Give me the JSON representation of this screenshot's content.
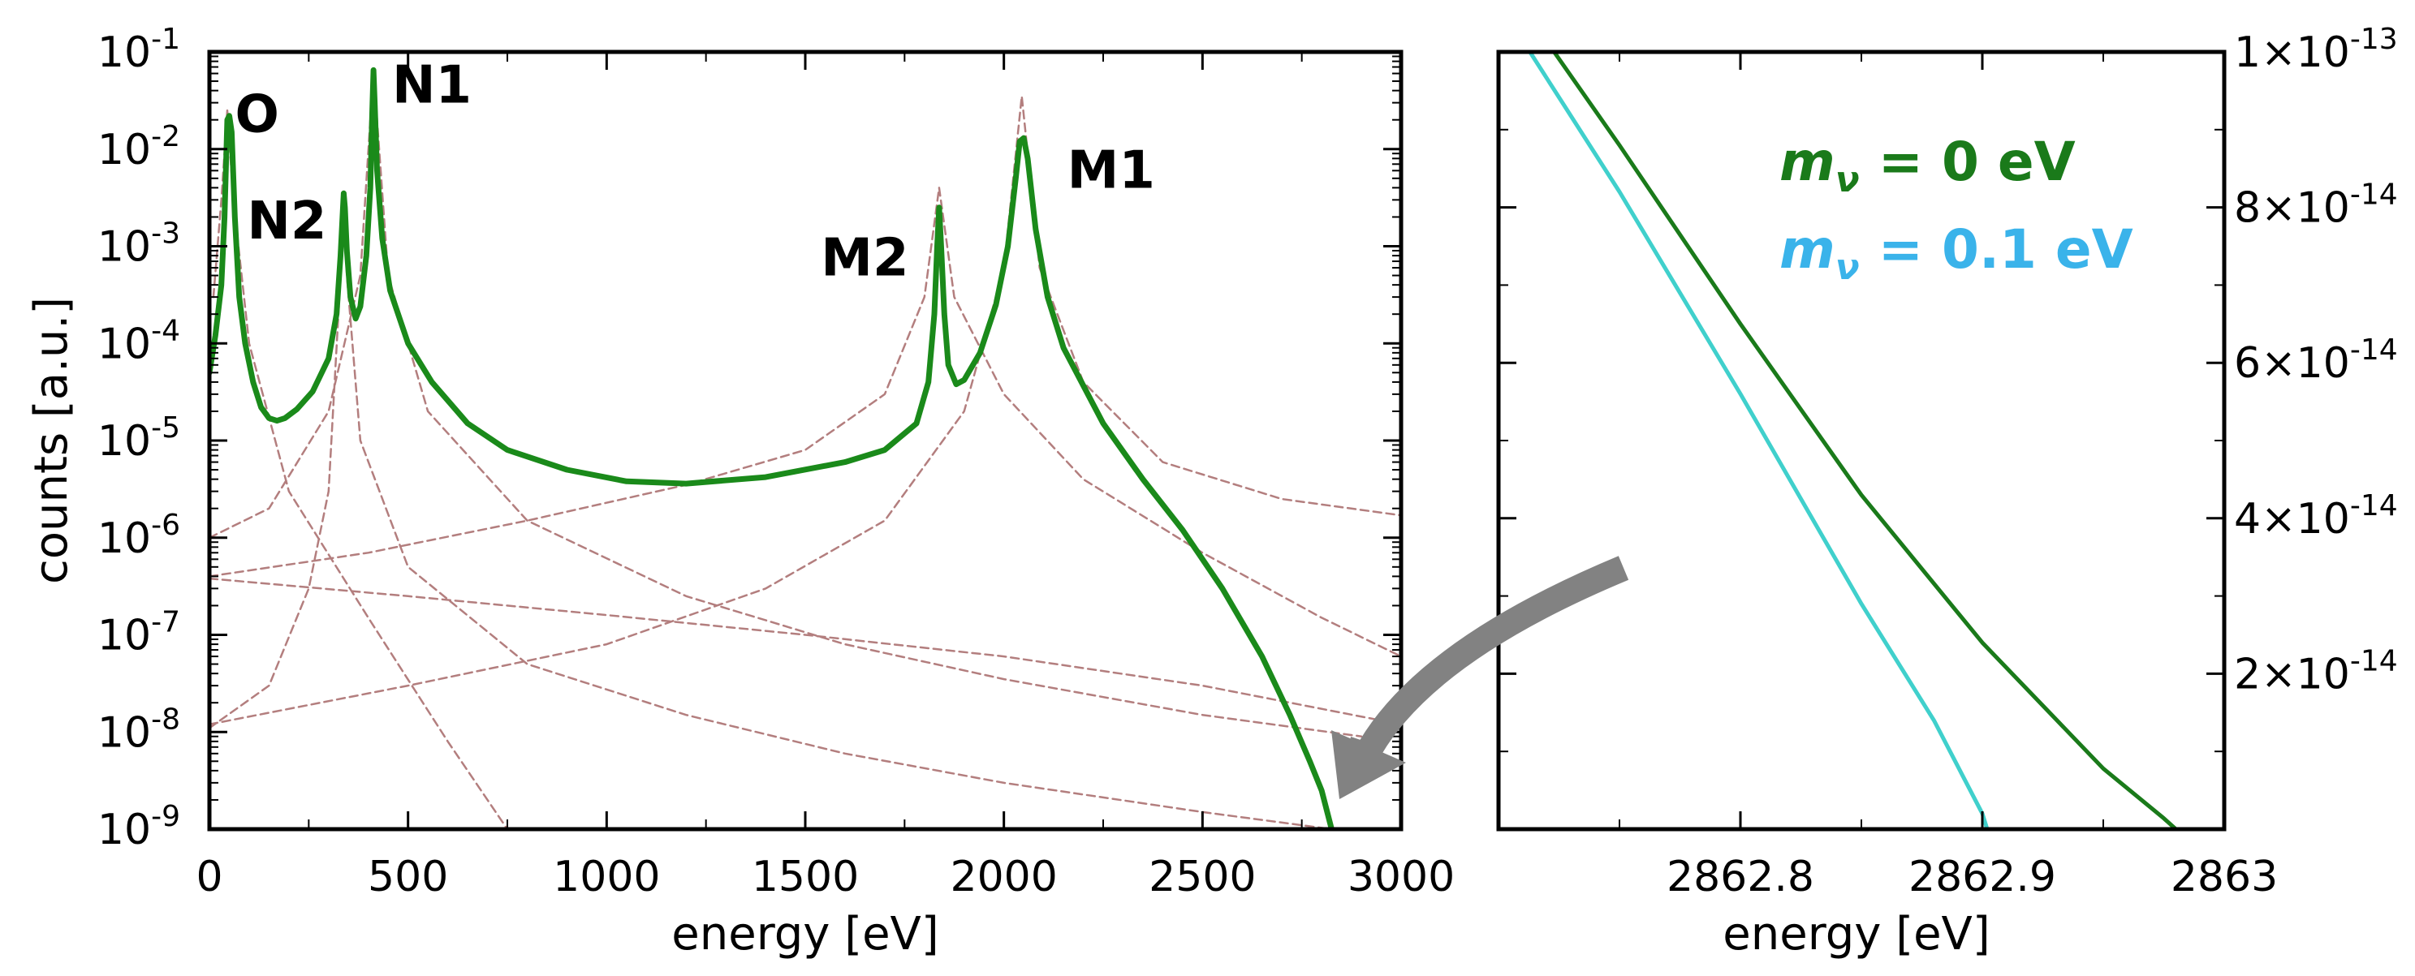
{
  "chart_data": [
    {
      "type": "line",
      "scale": {
        "x": "linear",
        "y": "log"
      },
      "xlim": [
        0,
        3000
      ],
      "ylim": [
        1e-09,
        0.1
      ],
      "xlabel": "energy [eV]",
      "ylabel": "counts [a.u.]",
      "x_ticks": [
        {
          "value": 0,
          "label": "0"
        },
        {
          "value": 500,
          "label": "500"
        },
        {
          "value": 1000,
          "label": "1000"
        },
        {
          "value": 1500,
          "label": "1500"
        },
        {
          "value": 2000,
          "label": "2000"
        },
        {
          "value": 2500,
          "label": "2500"
        },
        {
          "value": 3000,
          "label": "3000"
        }
      ],
      "y_ticks": [
        {
          "exp": -1,
          "mantissa": "10",
          "power": "-1"
        },
        {
          "exp": -2,
          "mantissa": "10",
          "power": "-2"
        },
        {
          "exp": -3,
          "mantissa": "10",
          "power": "-3"
        },
        {
          "exp": -4,
          "mantissa": "10",
          "power": "-4"
        },
        {
          "exp": -5,
          "mantissa": "10",
          "power": "-5"
        },
        {
          "exp": -6,
          "mantissa": "10",
          "power": "-6"
        },
        {
          "exp": -7,
          "mantissa": "10",
          "power": "-7"
        },
        {
          "exp": -8,
          "mantissa": "10",
          "power": "-8"
        },
        {
          "exp": -9,
          "mantissa": "10",
          "power": "-9"
        }
      ],
      "peak_labels": [
        {
          "text": "O",
          "x": 120,
          "y": 0.015
        },
        {
          "text": "N2",
          "x": 195,
          "y": 0.0012
        },
        {
          "text": "N1",
          "x": 560,
          "y": 0.03
        },
        {
          "text": "M2",
          "x": 1650,
          "y": 0.0005
        },
        {
          "text": "M1",
          "x": 2270,
          "y": 0.004
        }
      ],
      "series": [
        {
          "role": "total spectrum",
          "color": "#1a8a1a",
          "points": [
            [
              0,
              5e-05
            ],
            [
              15,
              0.00012
            ],
            [
              30,
              0.0004
            ],
            [
              38,
              0.002
            ],
            [
              45,
              0.02
            ],
            [
              50,
              0.022
            ],
            [
              56,
              0.015
            ],
            [
              64,
              0.002
            ],
            [
              75,
              0.0003
            ],
            [
              90,
              0.0001
            ],
            [
              110,
              4e-05
            ],
            [
              130,
              2.2e-05
            ],
            [
              150,
              1.7e-05
            ],
            [
              170,
              1.6e-05
            ],
            [
              190,
              1.7e-05
            ],
            [
              220,
              2.1e-05
            ],
            [
              260,
              3.2e-05
            ],
            [
              300,
              7e-05
            ],
            [
              320,
              0.0002
            ],
            [
              330,
              0.0008
            ],
            [
              335,
              0.002
            ],
            [
              338,
              0.0035
            ],
            [
              341,
              0.0025
            ],
            [
              346,
              0.0009
            ],
            [
              355,
              0.0003
            ],
            [
              368,
              0.00018
            ],
            [
              380,
              0.00024
            ],
            [
              395,
              0.0008
            ],
            [
              405,
              0.004
            ],
            [
              410,
              0.025
            ],
            [
              413,
              0.065
            ],
            [
              416,
              0.03
            ],
            [
              422,
              0.006
            ],
            [
              435,
              0.0012
            ],
            [
              455,
              0.00035
            ],
            [
              500,
              0.0001
            ],
            [
              560,
              4e-05
            ],
            [
              650,
              1.5e-05
            ],
            [
              750,
              8e-06
            ],
            [
              900,
              5e-06
            ],
            [
              1050,
              3.8e-06
            ],
            [
              1200,
              3.6e-06
            ],
            [
              1400,
              4.2e-06
            ],
            [
              1600,
              6e-06
            ],
            [
              1700,
              8e-06
            ],
            [
              1780,
              1.5e-05
            ],
            [
              1810,
              4e-05
            ],
            [
              1825,
              0.0002
            ],
            [
              1832,
              0.001
            ],
            [
              1837,
              0.0025
            ],
            [
              1842,
              0.001
            ],
            [
              1850,
              0.0002
            ],
            [
              1860,
              6e-05
            ],
            [
              1880,
              3.8e-05
            ],
            [
              1900,
              4.2e-05
            ],
            [
              1940,
              8e-05
            ],
            [
              1980,
              0.00025
            ],
            [
              2010,
              0.001
            ],
            [
              2030,
              0.005
            ],
            [
              2040,
              0.012
            ],
            [
              2050,
              0.013
            ],
            [
              2060,
              0.008
            ],
            [
              2080,
              0.0015
            ],
            [
              2110,
              0.0003
            ],
            [
              2150,
              9e-05
            ],
            [
              2250,
              1.5e-05
            ],
            [
              2350,
              4e-06
            ],
            [
              2450,
              1.2e-06
            ],
            [
              2550,
              3e-07
            ],
            [
              2650,
              6e-08
            ],
            [
              2720,
              1.5e-08
            ],
            [
              2770,
              5e-09
            ],
            [
              2800,
              2.5e-09
            ],
            [
              2825,
              1e-09
            ]
          ]
        },
        {
          "role": "component O",
          "color": "#b37e7e",
          "dashed": true,
          "points": [
            [
              10,
              0.0003
            ],
            [
              30,
              0.003
            ],
            [
              45,
              0.025
            ],
            [
              60,
              0.003
            ],
            [
              100,
              0.0001
            ],
            [
              200,
              3e-06
            ],
            [
              400,
              1.5e-07
            ],
            [
              600,
              8e-09
            ],
            [
              750,
              1e-09
            ]
          ]
        },
        {
          "role": "component N2",
          "color": "#b37e7e",
          "dashed": true,
          "points": [
            [
              0,
              1.1e-08
            ],
            [
              150,
              3e-08
            ],
            [
              250,
              3e-07
            ],
            [
              300,
              3e-06
            ],
            [
              330,
              0.0005
            ],
            [
              338,
              0.003
            ],
            [
              346,
              0.0005
            ],
            [
              380,
              1e-05
            ],
            [
              500,
              5e-07
            ],
            [
              800,
              5e-08
            ],
            [
              1200,
              1.5e-08
            ],
            [
              1600,
              6e-09
            ],
            [
              2000,
              3e-09
            ],
            [
              2500,
              1.5e-09
            ],
            [
              2825,
              1e-09
            ]
          ]
        },
        {
          "role": "component N1",
          "color": "#b37e7e",
          "dashed": true,
          "points": [
            [
              0,
              1e-06
            ],
            [
              150,
              2e-06
            ],
            [
              300,
              2e-05
            ],
            [
              380,
              0.0005
            ],
            [
              413,
              0.065
            ],
            [
              450,
              0.0005
            ],
            [
              550,
              2e-05
            ],
            [
              800,
              1.5e-06
            ],
            [
              1200,
              2.5e-07
            ],
            [
              1600,
              8e-08
            ],
            [
              2000,
              3.5e-08
            ],
            [
              2500,
              1.5e-08
            ],
            [
              2900,
              9e-09
            ]
          ]
        },
        {
          "role": "component M2",
          "color": "#b37e7e",
          "dashed": true,
          "points": [
            [
              0,
              4e-07
            ],
            [
              400,
              7e-07
            ],
            [
              800,
              1.5e-06
            ],
            [
              1200,
              3.5e-06
            ],
            [
              1500,
              8e-06
            ],
            [
              1700,
              3e-05
            ],
            [
              1800,
              0.0003
            ],
            [
              1837,
              0.004
            ],
            [
              1875,
              0.0003
            ],
            [
              2000,
              3e-05
            ],
            [
              2200,
              4e-06
            ],
            [
              2500,
              7e-07
            ],
            [
              2800,
              1.5e-07
            ],
            [
              3000,
              6e-08
            ]
          ]
        },
        {
          "role": "component M1",
          "color": "#b37e7e",
          "dashed": true,
          "points": [
            [
              0,
              1.2e-08
            ],
            [
              500,
              3e-08
            ],
            [
              1000,
              8e-08
            ],
            [
              1400,
              3e-07
            ],
            [
              1700,
              1.5e-06
            ],
            [
              1900,
              2e-05
            ],
            [
              2000,
              0.0006
            ],
            [
              2045,
              0.035
            ],
            [
              2090,
              0.0006
            ],
            [
              2200,
              4e-05
            ],
            [
              2400,
              6e-06
            ],
            [
              2700,
              2.5e-06
            ],
            [
              3000,
              1.7e-06
            ]
          ]
        },
        {
          "role": "long tail component",
          "color": "#b37e7e",
          "dashed": true,
          "points": [
            [
              0,
              3.8e-07
            ],
            [
              500,
              2.5e-07
            ],
            [
              1000,
              1.6e-07
            ],
            [
              1500,
              1e-07
            ],
            [
              2000,
              6e-08
            ],
            [
              2500,
              3e-08
            ],
            [
              3000,
              1.2e-08
            ]
          ]
        }
      ]
    },
    {
      "type": "line",
      "scale": {
        "x": "linear",
        "y": "linear"
      },
      "xlim": [
        2862.7,
        2863.0
      ],
      "ylim": [
        0,
        1e-13
      ],
      "xlabel": "energy [eV]",
      "ylabel": "",
      "x_ticks": [
        {
          "value": 2862.8,
          "label": "2862.8"
        },
        {
          "value": 2862.9,
          "label": "2862.9"
        },
        {
          "value": 2863.0,
          "label": "2863"
        }
      ],
      "y_ticks": [
        {
          "value": 1e-13,
          "mantissa": "1",
          "power": "-13"
        },
        {
          "value": 8e-14,
          "mantissa": "8",
          "power": "-14"
        },
        {
          "value": 6e-14,
          "mantissa": "6",
          "power": "-14"
        },
        {
          "value": 4e-14,
          "mantissa": "4",
          "power": "-14"
        },
        {
          "value": 2e-14,
          "mantissa": "2",
          "power": "-14"
        }
      ],
      "legend": {
        "position": "top-right"
      },
      "series": [
        {
          "name_symbol": "m",
          "name_subscript": "ν",
          "name_rest": " = 0 eV",
          "color": "#1a7a1a",
          "points": [
            [
              2862.723,
              1e-13
            ],
            [
              2862.75,
              8.8e-14
            ],
            [
              2862.8,
              6.5e-14
            ],
            [
              2862.85,
              4.3e-14
            ],
            [
              2862.9,
              2.4e-14
            ],
            [
              2862.95,
              7.8e-15
            ],
            [
              2862.975,
              1.4e-15
            ],
            [
              2862.98,
              0
            ]
          ]
        },
        {
          "name_symbol": "m",
          "name_subscript": "ν",
          "name_rest": " = 0.1 eV",
          "color": "#3ab3ea",
          "line_color": "#40d0cc",
          "points": [
            [
              2862.713,
              1e-13
            ],
            [
              2862.75,
              8.2e-14
            ],
            [
              2862.8,
              5.6e-14
            ],
            [
              2862.85,
              2.9e-14
            ],
            [
              2862.88,
              1.4e-14
            ],
            [
              2862.9,
              2e-15
            ],
            [
              2862.902,
              0
            ]
          ]
        }
      ]
    }
  ]
}
